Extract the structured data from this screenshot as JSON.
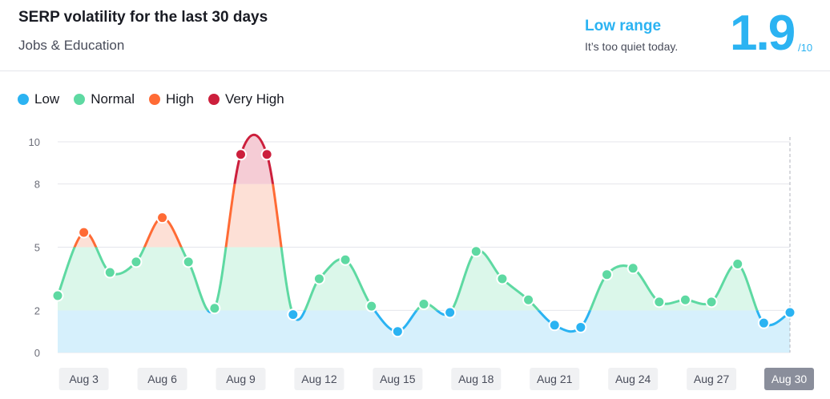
{
  "header": {
    "title": "SERP volatility for the last 30 days",
    "subtitle": "Jobs & Education",
    "range_label": "Low range",
    "range_desc": "It’s too quiet today.",
    "score": "1.9",
    "score_max": "/10"
  },
  "legend": [
    {
      "label": "Low",
      "color": "#2bb3f2"
    },
    {
      "label": "Normal",
      "color": "#5ed9a2"
    },
    {
      "label": "High",
      "color": "#ff6b35"
    },
    {
      "label": "Very High",
      "color": "#cc1f3c"
    }
  ],
  "chart_data": {
    "type": "line",
    "y_ticks": [
      0,
      2,
      5,
      8,
      10
    ],
    "ylim": [
      0,
      10
    ],
    "x_tick_labels": [
      "Aug 3",
      "Aug 6",
      "Aug 9",
      "Aug 12",
      "Aug 15",
      "Aug 18",
      "Aug 21",
      "Aug 24",
      "Aug 27",
      "Aug 30"
    ],
    "x_tick_indices": [
      1,
      4,
      7,
      10,
      13,
      16,
      19,
      22,
      25,
      28
    ],
    "active_label_index": 9,
    "thresholds": {
      "low": 2,
      "normal": 5,
      "high": 8
    },
    "points": [
      {
        "day": "Aug 2",
        "value": 2.7
      },
      {
        "day": "Aug 3",
        "value": 5.7
      },
      {
        "day": "Aug 4",
        "value": 3.8
      },
      {
        "day": "Aug 5",
        "value": 4.3
      },
      {
        "day": "Aug 6",
        "value": 6.4
      },
      {
        "day": "Aug 7",
        "value": 4.3
      },
      {
        "day": "Aug 8",
        "value": 2.1
      },
      {
        "day": "Aug 9",
        "value": 9.4
      },
      {
        "day": "Aug 10",
        "value": 9.4
      },
      {
        "day": "Aug 11",
        "value": 1.8
      },
      {
        "day": "Aug 12",
        "value": 3.5
      },
      {
        "day": "Aug 13",
        "value": 4.4
      },
      {
        "day": "Aug 14",
        "value": 2.2
      },
      {
        "day": "Aug 15",
        "value": 1.0
      },
      {
        "day": "Aug 16",
        "value": 2.3
      },
      {
        "day": "Aug 17",
        "value": 1.9
      },
      {
        "day": "Aug 18",
        "value": 4.8
      },
      {
        "day": "Aug 19",
        "value": 3.5
      },
      {
        "day": "Aug 20",
        "value": 2.5
      },
      {
        "day": "Aug 21",
        "value": 1.3
      },
      {
        "day": "Aug 22",
        "value": 1.2
      },
      {
        "day": "Aug 23",
        "value": 3.7
      },
      {
        "day": "Aug 24",
        "value": 4.0
      },
      {
        "day": "Aug 25",
        "value": 2.4
      },
      {
        "day": "Aug 26",
        "value": 2.5
      },
      {
        "day": "Aug 27",
        "value": 2.4
      },
      {
        "day": "Aug 28",
        "value": 4.2
      },
      {
        "day": "Aug 29",
        "value": 1.4
      },
      {
        "day": "Aug 30",
        "value": 1.9
      }
    ]
  }
}
